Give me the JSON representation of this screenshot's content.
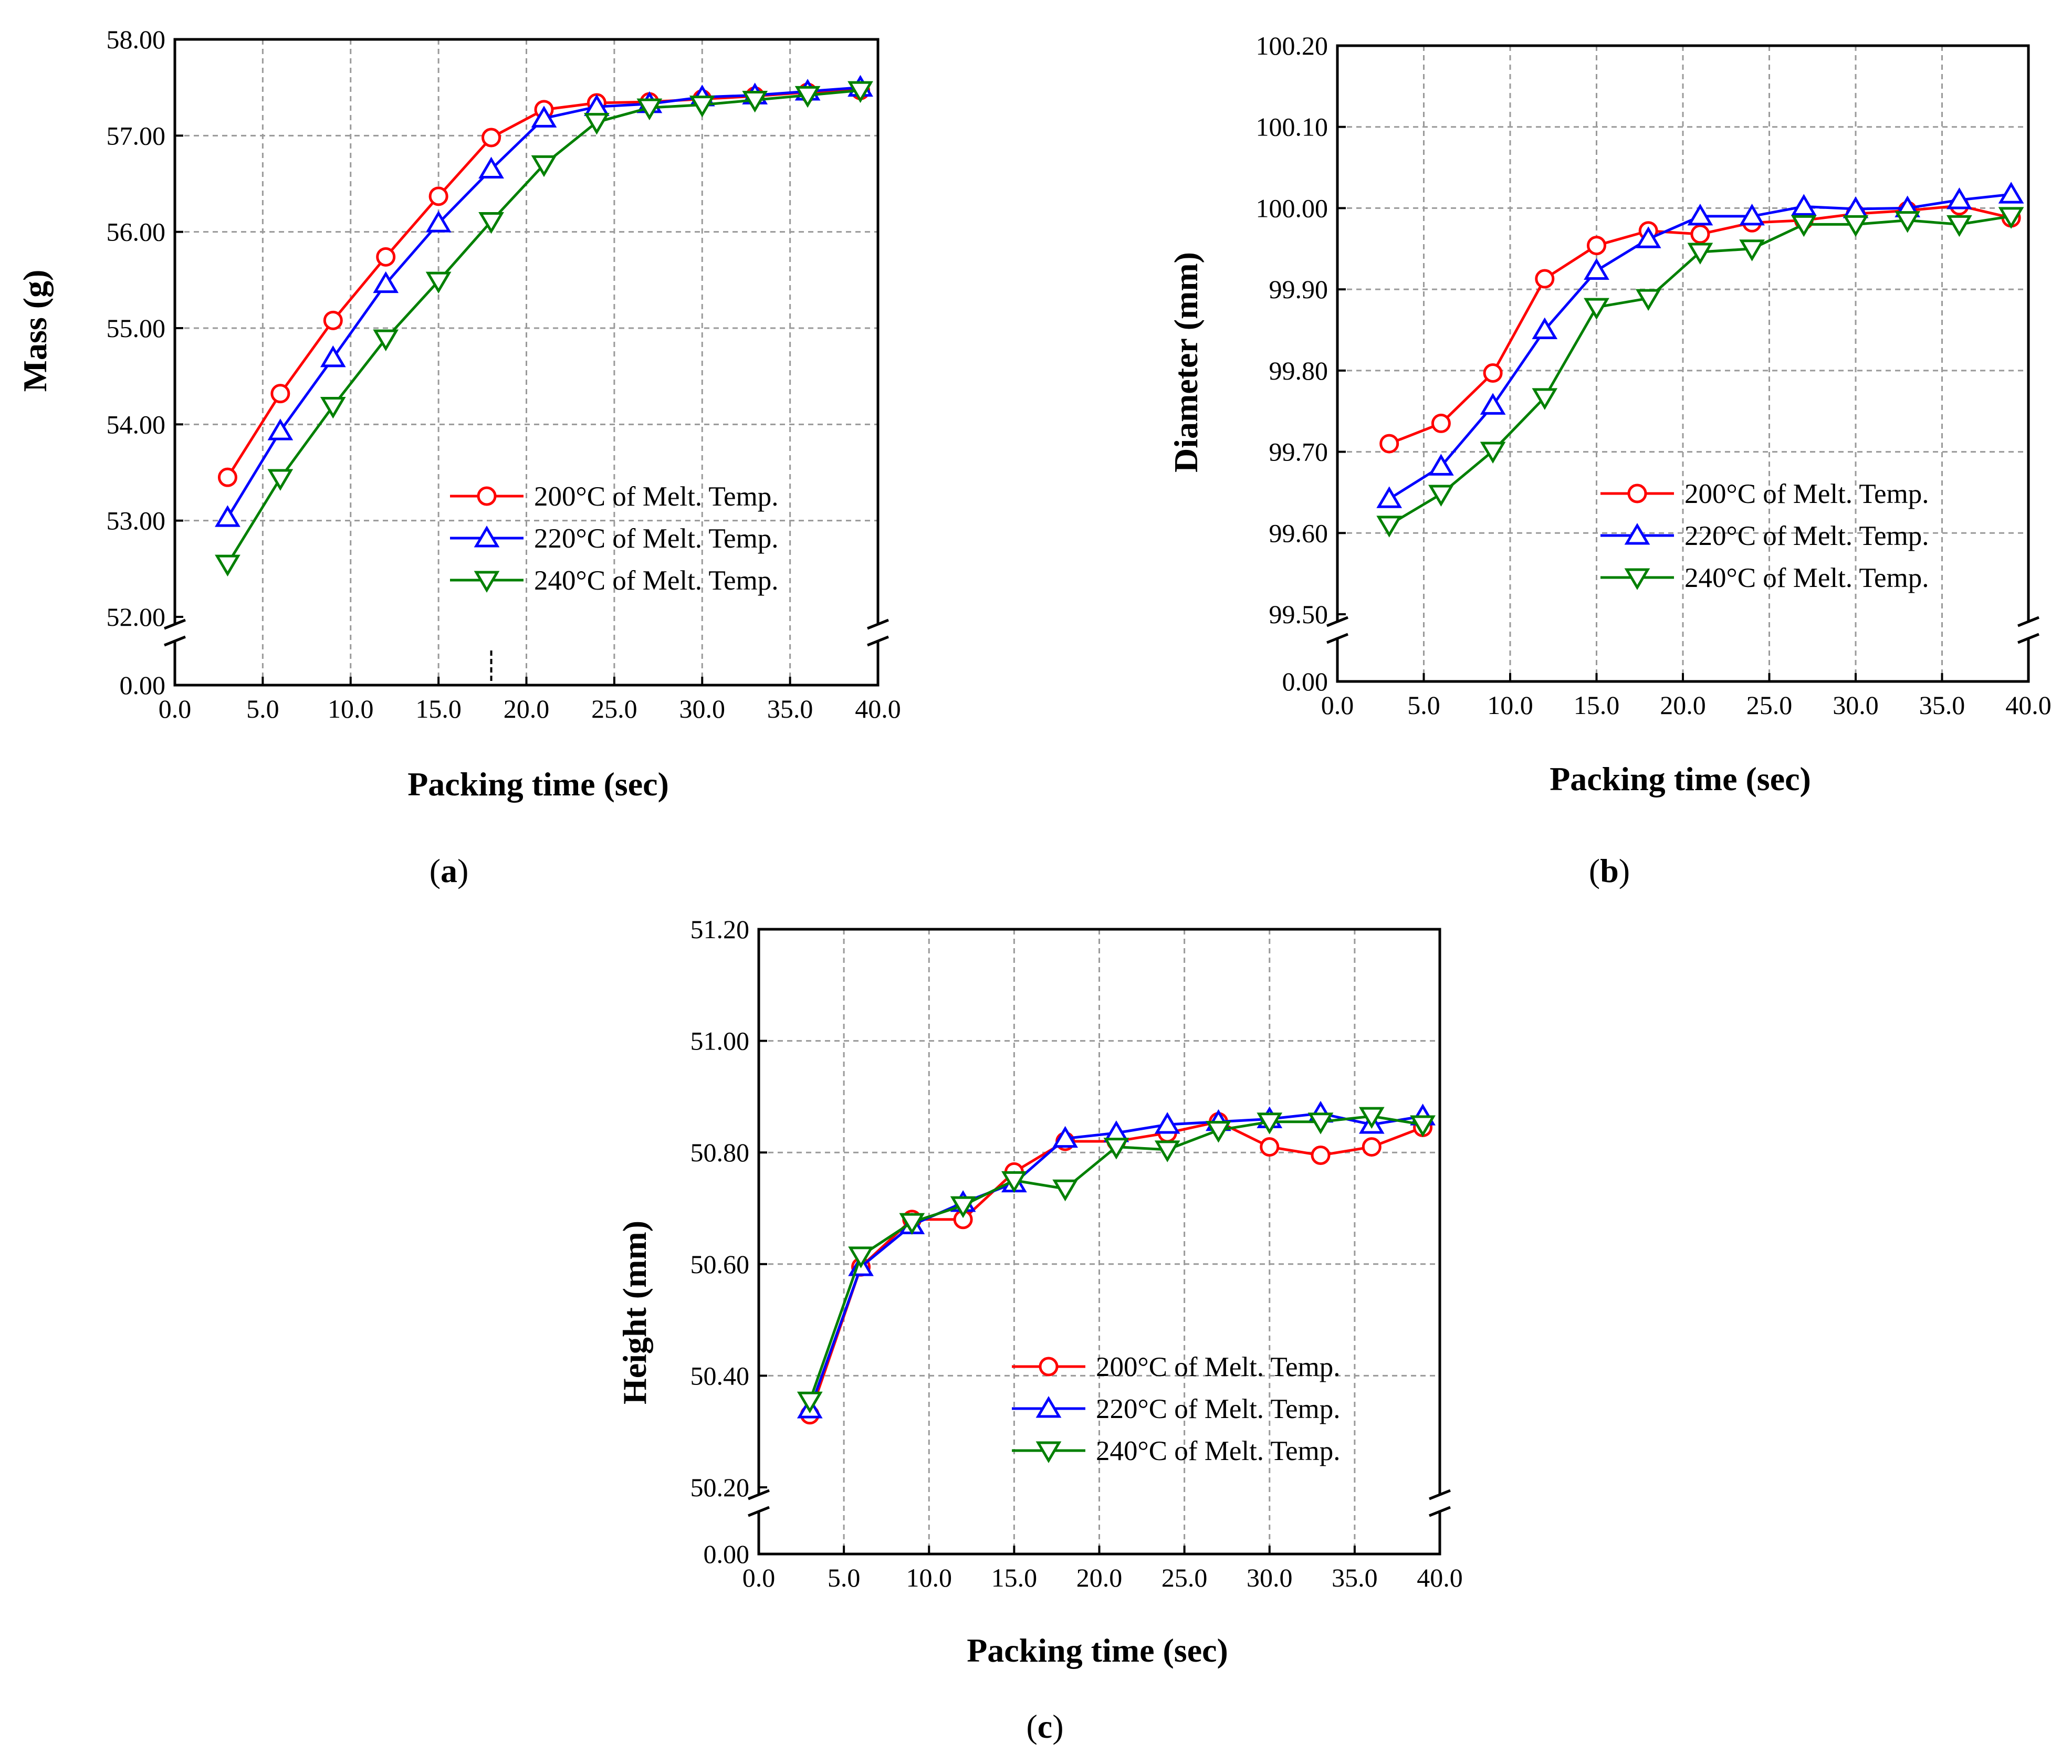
{
  "figure": {
    "panels": [
      {
        "key": "a",
        "label_letter": "a",
        "y_title": "Mass (g)",
        "x_title": "Packing time (sec)"
      },
      {
        "key": "b",
        "label_letter": "b",
        "y_title": "Diameter (mm)",
        "x_title": "Packing time (sec)"
      },
      {
        "key": "c",
        "label_letter": "c",
        "y_title": "Height (mm)",
        "x_title": "Packing time (sec)"
      }
    ]
  },
  "chart_data": [
    {
      "type": "line",
      "panel": "a",
      "title": "",
      "xlabel": "Packing time (sec)",
      "ylabel": "Mass (g)",
      "xlim": [
        0,
        40
      ],
      "ylim_upper": [
        52.0,
        58.0
      ],
      "ylim_lower": [
        0.0,
        0.0
      ],
      "axis_break": true,
      "grid": true,
      "legend_position": "bottom-right",
      "x_ticks": [
        "0.0",
        "5.0",
        "10.0",
        "15.0",
        "20.0",
        "25.0",
        "30.0",
        "35.0",
        "40.0"
      ],
      "x_tick_values": [
        0,
        5,
        10,
        15,
        20,
        25,
        30,
        35,
        40
      ],
      "y_ticks": [
        "52.00",
        "53.00",
        "54.00",
        "55.00",
        "56.00",
        "57.00",
        "58.00"
      ],
      "y_tick_values": [
        52,
        53,
        54,
        55,
        56,
        57,
        58
      ],
      "y_break_tick": "0.00",
      "annotation": "dashed marker at 18 s",
      "marker_x": 18,
      "x": [
        3,
        6,
        9,
        12,
        15,
        18,
        21,
        24,
        27,
        30,
        33,
        36,
        39
      ],
      "series": [
        {
          "name": "200°C of Melt. Temp.",
          "color": "#ff0000",
          "marker": "circle",
          "values": [
            53.45,
            54.32,
            55.08,
            55.74,
            56.37,
            56.98,
            57.27,
            57.34,
            57.35,
            57.38,
            57.41,
            57.45,
            57.47
          ]
        },
        {
          "name": "220°C of Melt. Temp.",
          "color": "#0000ff",
          "marker": "triangle-up",
          "values": [
            53.03,
            53.93,
            54.69,
            55.46,
            56.09,
            56.65,
            57.18,
            57.3,
            57.33,
            57.4,
            57.42,
            57.46,
            57.5
          ]
        },
        {
          "name": "240°C of Melt. Temp.",
          "color": "#008000",
          "marker": "triangle-down",
          "values": [
            52.55,
            53.44,
            54.19,
            54.89,
            55.49,
            56.11,
            56.7,
            57.14,
            57.29,
            57.32,
            57.37,
            57.42,
            57.47
          ]
        }
      ]
    },
    {
      "type": "line",
      "panel": "b",
      "title": "",
      "xlabel": "Packing time (sec)",
      "ylabel": "Diameter (mm)",
      "xlim": [
        0,
        40
      ],
      "ylim_upper": [
        99.5,
        100.2
      ],
      "ylim_lower": [
        0.0,
        0.0
      ],
      "axis_break": true,
      "grid": true,
      "legend_position": "bottom-right",
      "x_ticks": [
        "0.0",
        "5.0",
        "10.0",
        "15.0",
        "20.0",
        "25.0",
        "30.0",
        "35.0",
        "40.0"
      ],
      "x_tick_values": [
        0,
        5,
        10,
        15,
        20,
        25,
        30,
        35,
        40
      ],
      "y_ticks": [
        "99.50",
        "99.60",
        "99.70",
        "99.80",
        "99.90",
        "100.00",
        "100.10",
        "100.20"
      ],
      "y_tick_values": [
        99.5,
        99.6,
        99.7,
        99.8,
        99.9,
        100.0,
        100.1,
        100.2
      ],
      "y_break_tick": "0.00",
      "x": [
        3,
        6,
        9,
        12,
        15,
        18,
        21,
        24,
        27,
        30,
        33,
        36,
        39
      ],
      "series": [
        {
          "name": "200°C of Melt. Temp.",
          "color": "#ff0000",
          "marker": "circle",
          "values": [
            99.71,
            99.735,
            99.797,
            99.913,
            99.954,
            99.972,
            99.968,
            99.982,
            99.985,
            99.993,
            99.997,
            100.003,
            99.988
          ]
        },
        {
          "name": "220°C of Melt. Temp.",
          "color": "#0000ff",
          "marker": "triangle-up",
          "values": [
            99.642,
            99.682,
            99.757,
            99.85,
            99.923,
            99.962,
            99.99,
            99.99,
            100.002,
            99.999,
            100.0,
            100.01,
            100.017
          ]
        },
        {
          "name": "240°C of Melt. Temp.",
          "color": "#008000",
          "marker": "triangle-down",
          "values": [
            99.61,
            99.648,
            99.701,
            99.767,
            99.878,
            99.889,
            99.946,
            99.95,
            99.98,
            99.98,
            99.985,
            99.98,
            99.99
          ]
        }
      ]
    },
    {
      "type": "line",
      "panel": "c",
      "title": "",
      "xlabel": "Packing time (sec)",
      "ylabel": "Height (mm)",
      "xlim": [
        0,
        40
      ],
      "ylim_upper": [
        50.2,
        51.2
      ],
      "ylim_lower": [
        0.0,
        0.0
      ],
      "axis_break": true,
      "grid": true,
      "legend_position": "bottom-right",
      "x_ticks": [
        "0.0",
        "5.0",
        "10.0",
        "15.0",
        "20.0",
        "25.0",
        "30.0",
        "35.0",
        "40.0"
      ],
      "x_tick_values": [
        0,
        5,
        10,
        15,
        20,
        25,
        30,
        35,
        40
      ],
      "y_ticks": [
        "50.20",
        "50.40",
        "50.60",
        "50.80",
        "51.00",
        "51.20"
      ],
      "y_tick_values": [
        50.2,
        50.4,
        50.6,
        50.8,
        51.0,
        51.2
      ],
      "y_break_tick": "0.00",
      "x": [
        3,
        6,
        9,
        12,
        15,
        18,
        21,
        24,
        27,
        30,
        33,
        36,
        39
      ],
      "series": [
        {
          "name": "200°C of Melt. Temp.",
          "color": "#ff0000",
          "marker": "circle",
          "values": [
            50.33,
            50.595,
            50.68,
            50.68,
            50.765,
            50.82,
            50.82,
            50.835,
            50.855,
            50.81,
            50.795,
            50.81,
            50.845
          ]
        },
        {
          "name": "220°C of Melt. Temp.",
          "color": "#0000ff",
          "marker": "triangle-up",
          "values": [
            50.34,
            50.595,
            50.67,
            50.71,
            50.745,
            50.825,
            50.835,
            50.85,
            50.855,
            50.86,
            50.87,
            50.85,
            50.865
          ]
        },
        {
          "name": "240°C of Melt. Temp.",
          "color": "#008000",
          "marker": "triangle-down",
          "values": [
            50.355,
            50.615,
            50.675,
            50.705,
            50.75,
            50.735,
            50.81,
            50.805,
            50.84,
            50.855,
            50.855,
            50.865,
            50.85
          ]
        }
      ]
    }
  ]
}
